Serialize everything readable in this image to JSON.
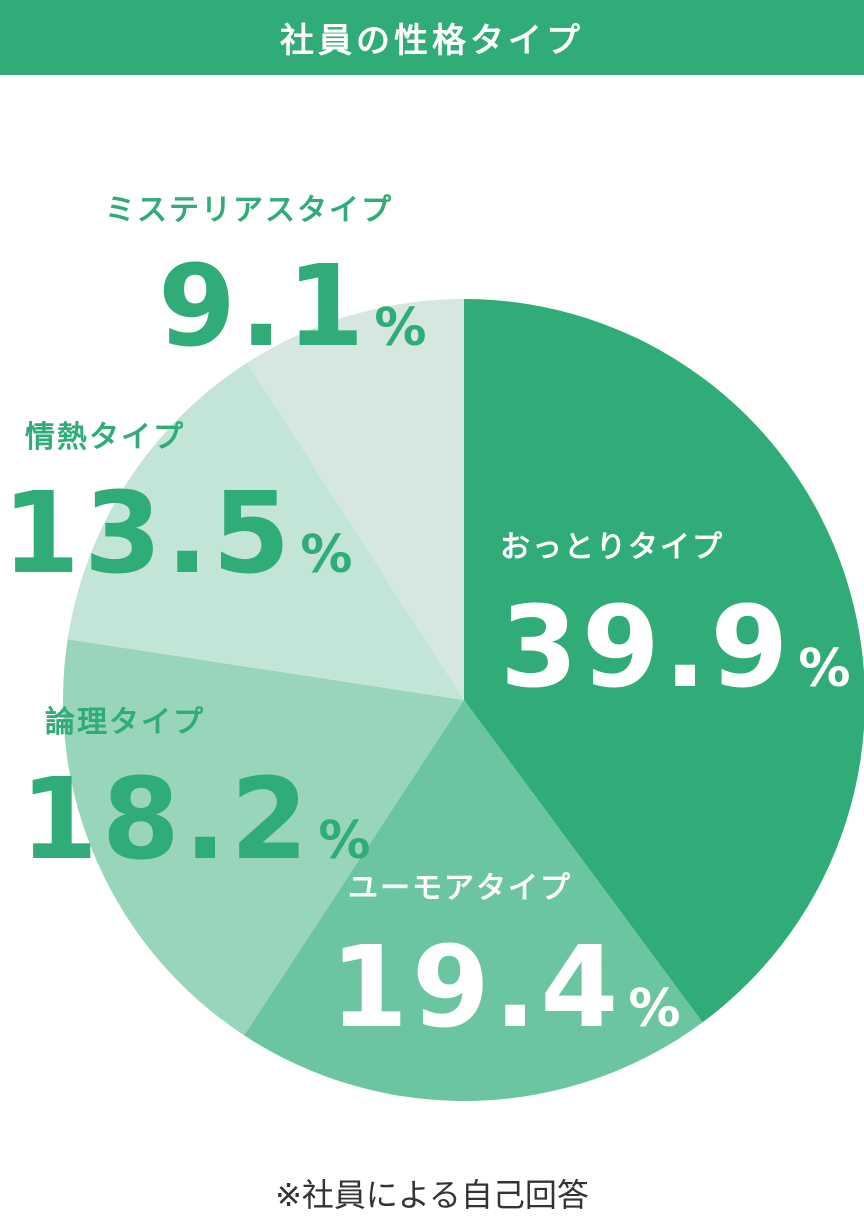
{
  "chart_data": {
    "type": "pie",
    "title": "社員の性格タイプ",
    "categories": [
      "おっとりタイプ",
      "ユーモアタイプ",
      "論理タイプ",
      "情熱タイプ",
      "ミステリアスタイプ"
    ],
    "values": [
      39.9,
      19.4,
      18.2,
      13.5,
      9.1
    ],
    "unit": "%",
    "colors": [
      "#2fac78",
      "#6cc5a1",
      "#98d5bb",
      "#c3e5d7",
      "#d6e7e1"
    ],
    "label_colors": [
      "#ffffff",
      "#ffffff",
      "#2fac78",
      "#2fac78",
      "#2fac78"
    ],
    "note": "※社員による自己回答"
  }
}
